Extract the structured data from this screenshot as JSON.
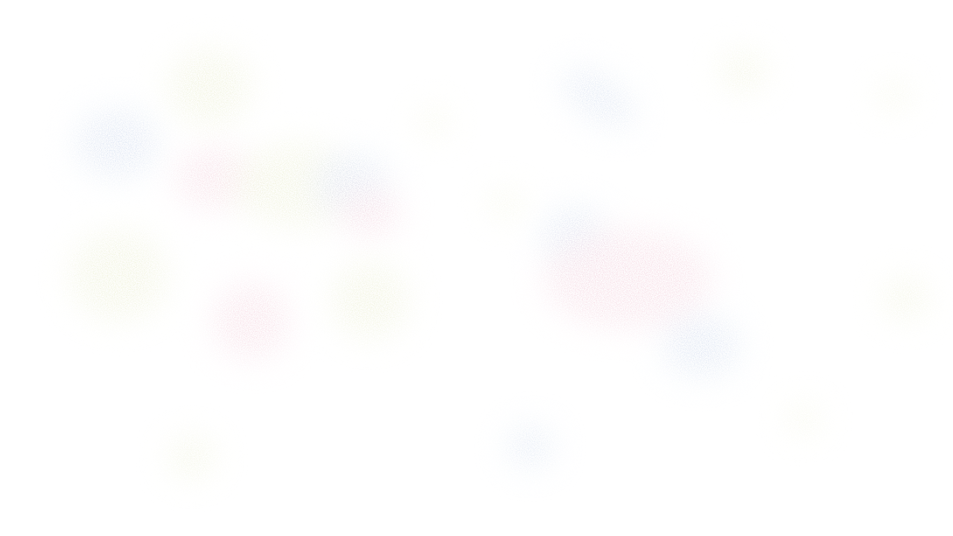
{
  "palette": {
    "background": "#ffffff",
    "blue": "#c9d6ec",
    "pink": "#f2cbd8",
    "yellow": "#e9ecc9"
  },
  "texture": "speckled-noise",
  "blobs": [
    {
      "tone": "yellow"
    },
    {
      "tone": "blue"
    },
    {
      "tone": "pink"
    },
    {
      "tone": "yellow"
    },
    {
      "tone": "blue"
    },
    {
      "tone": "pink"
    },
    {
      "tone": "yellow"
    },
    {
      "tone": "yellow"
    },
    {
      "tone": "pink"
    },
    {
      "tone": "yellow"
    },
    {
      "tone": "yellow"
    },
    {
      "tone": "blue"
    },
    {
      "tone": "yellow"
    },
    {
      "tone": "yellow"
    },
    {
      "tone": "blue"
    },
    {
      "tone": "pink"
    },
    {
      "tone": "blue"
    },
    {
      "tone": "yellow"
    },
    {
      "tone": "yellow"
    },
    {
      "tone": "blue"
    },
    {
      "tone": "yellow"
    }
  ]
}
